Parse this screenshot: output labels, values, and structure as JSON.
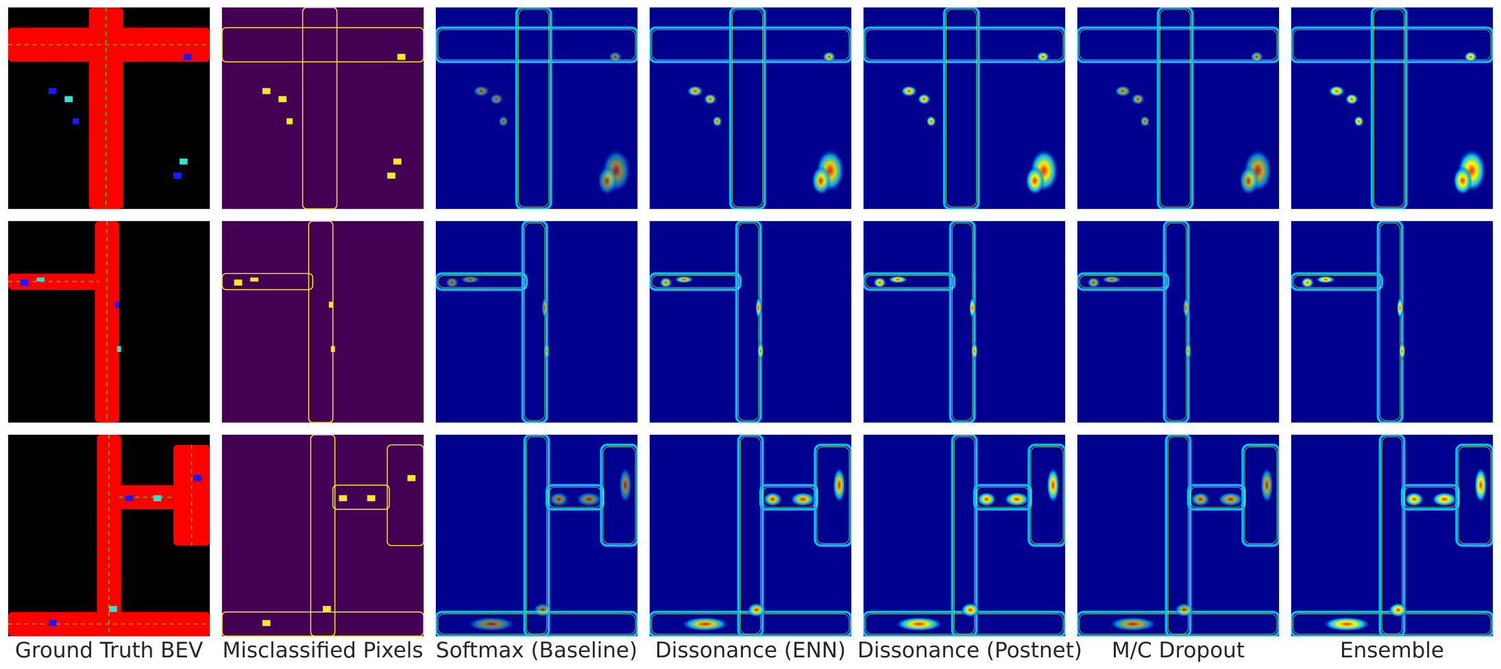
{
  "columns": [
    {
      "label": "Ground Truth BEV",
      "kind": "bev"
    },
    {
      "label": "Misclassified Pixels",
      "kind": "misclassified"
    },
    {
      "label": "Softmax (Baseline)",
      "kind": "heat"
    },
    {
      "label": "Dissonance (ENN)",
      "kind": "heat"
    },
    {
      "label": "Dissonance (Postnet)",
      "kind": "heat"
    },
    {
      "label": "M/C Dropout",
      "kind": "heat"
    },
    {
      "label": "Ensemble",
      "kind": "heat"
    }
  ],
  "rows": [
    {
      "scene": "intersection"
    },
    {
      "scene": "corridor"
    },
    {
      "scene": "junction"
    }
  ],
  "colors": {
    "bev_background": "#000000",
    "bev_road": "#ff0000",
    "bev_lane": "#2bd92b",
    "bev_vehicle": "#1a1aff",
    "bev_ped": "#34e0d0",
    "mis_background": "#440154",
    "mis_error": "#fde725",
    "heat_low": "#00008f",
    "heat_mid": "#00bfff",
    "heat_high": "#ffff00",
    "heat_peak": "#ff2000"
  }
}
